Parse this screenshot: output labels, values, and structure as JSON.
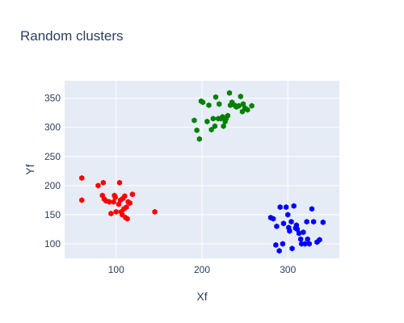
{
  "chart_data": {
    "type": "scatter",
    "title": "Random clusters",
    "xlabel": "Xf",
    "ylabel": "Yf",
    "xlim": [
      40,
      360
    ],
    "ylim": [
      75,
      380
    ],
    "xticks": [
      100,
      200,
      300
    ],
    "yticks": [
      100,
      150,
      200,
      250,
      300,
      350
    ],
    "grid": true,
    "legend": false,
    "series": [
      {
        "color": "#ff0000",
        "points": [
          [
            60,
            213
          ],
          [
            60,
            175
          ],
          [
            79,
            200
          ],
          [
            85,
            205
          ],
          [
            84,
            183
          ],
          [
            86,
            177
          ],
          [
            88,
            174
          ],
          [
            92,
            172
          ],
          [
            94,
            152
          ],
          [
            97,
            172
          ],
          [
            99,
            180
          ],
          [
            100,
            155
          ],
          [
            98,
            183
          ],
          [
            104,
            205
          ],
          [
            103,
            168
          ],
          [
            105,
            175
          ],
          [
            106,
            155
          ],
          [
            107,
            150
          ],
          [
            108,
            178
          ],
          [
            110,
            182
          ],
          [
            109,
            160
          ],
          [
            112,
            163
          ],
          [
            111,
            145
          ],
          [
            113,
            143
          ],
          [
            114,
            172
          ],
          [
            116,
            170
          ],
          [
            119,
            185
          ],
          [
            145,
            155
          ]
        ]
      },
      {
        "color": "#008000",
        "points": [
          [
            191,
            312
          ],
          [
            194,
            295
          ],
          [
            197,
            280
          ],
          [
            199,
            345
          ],
          [
            201,
            343
          ],
          [
            206,
            310
          ],
          [
            208,
            338
          ],
          [
            211,
            296
          ],
          [
            213,
            315
          ],
          [
            215,
            302
          ],
          [
            216,
            352
          ],
          [
            219,
            315
          ],
          [
            220,
            340
          ],
          [
            222,
            315
          ],
          [
            224,
            318
          ],
          [
            225,
            302
          ],
          [
            227,
            310
          ],
          [
            228,
            315
          ],
          [
            230,
            320
          ],
          [
            232,
            359
          ],
          [
            235,
            343
          ],
          [
            238,
            338
          ],
          [
            240,
            335
          ],
          [
            243,
            337
          ],
          [
            245,
            353
          ],
          [
            247,
            327
          ],
          [
            250,
            333
          ],
          [
            253,
            330
          ],
          [
            258,
            337
          ],
          [
            248,
            340
          ],
          [
            233,
            338
          ]
        ]
      },
      {
        "color": "#0000ff",
        "points": [
          [
            280,
            145
          ],
          [
            283,
            143
          ],
          [
            286,
            98
          ],
          [
            287,
            130
          ],
          [
            290,
            88
          ],
          [
            291,
            163
          ],
          [
            295,
            135
          ],
          [
            298,
            163
          ],
          [
            300,
            150
          ],
          [
            301,
            128
          ],
          [
            302,
            122
          ],
          [
            304,
            138
          ],
          [
            305,
            92
          ],
          [
            307,
            165
          ],
          [
            309,
            127
          ],
          [
            311,
            125
          ],
          [
            313,
            118
          ],
          [
            315,
            108
          ],
          [
            316,
            100
          ],
          [
            318,
            120
          ],
          [
            320,
            100
          ],
          [
            322,
            138
          ],
          [
            323,
            108
          ],
          [
            325,
            100
          ],
          [
            328,
            160
          ],
          [
            330,
            138
          ],
          [
            334,
            103
          ],
          [
            337,
            107
          ],
          [
            341,
            137
          ],
          [
            294,
            100
          ],
          [
            310,
            132
          ]
        ]
      }
    ]
  }
}
